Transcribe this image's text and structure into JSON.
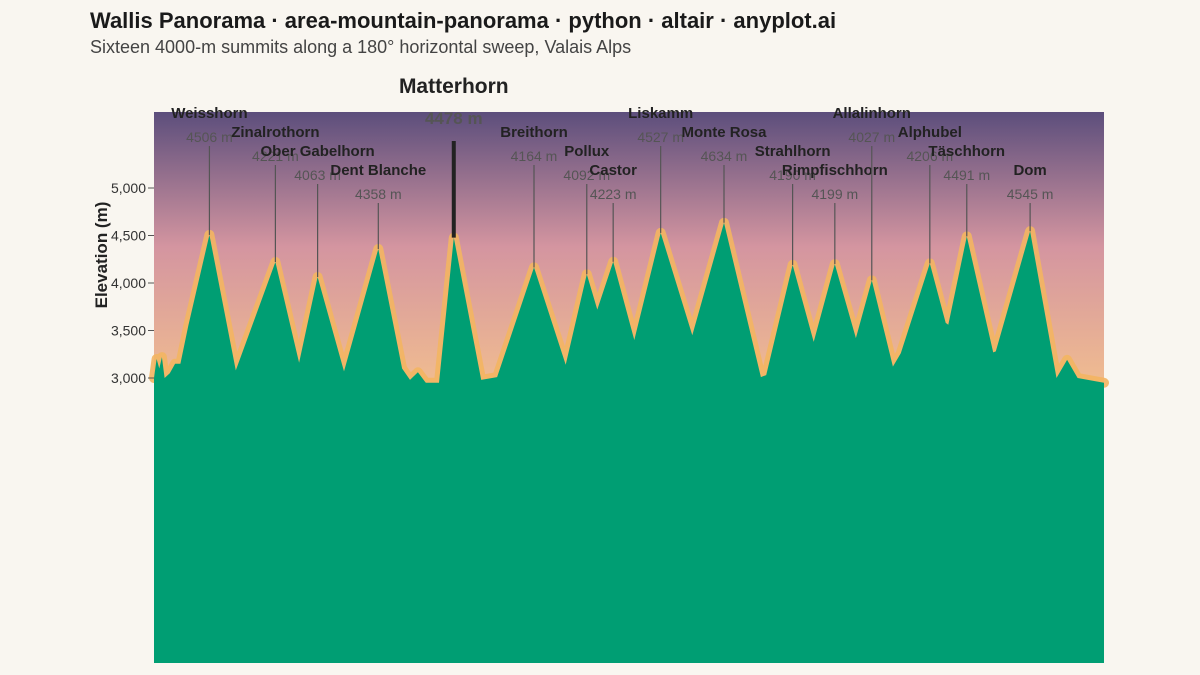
{
  "header": {
    "title": "Wallis Panorama · area-mountain-panorama · python · altair · anyplot.ai",
    "subtitle": "Sixteen 4000-m summits along a 180° horizontal sweep, Valais Alps"
  },
  "chart_data": {
    "type": "area",
    "title": "Wallis Panorama · area-mountain-panorama · python · altair · anyplot.ai",
    "subtitle": "Sixteen 4000-m summits along a 180° horizontal sweep, Valais Alps",
    "xlabel": "",
    "ylabel": "Elevation (m)",
    "ylim": [
      0,
      5800
    ],
    "yticks": [
      3000,
      3500,
      4000,
      4500,
      5000
    ],
    "ytick_labels": [
      "3,000",
      "3,500",
      "4,000",
      "4,500",
      "5,000"
    ],
    "xlim": [
      0,
      180
    ],
    "grid": false,
    "colors": {
      "terrain": "#009e73",
      "ridge_glow": "#f3b562",
      "sky_top": "#5c4e7c",
      "sky_mid": "#d495a0",
      "sky_bottom": "#f6c48d",
      "leader": "#555555",
      "hero_leader": "#222222"
    },
    "peaks": [
      {
        "name": "Weisshorn",
        "elevation_label": "4506 m",
        "x": 10.5,
        "elevation": 4506,
        "label_tier": 0
      },
      {
        "name": "Zinalrothorn",
        "elevation_label": "4221 m",
        "x": 23.0,
        "elevation": 4221,
        "label_tier": 1
      },
      {
        "name": "Ober Gabelhorn",
        "elevation_label": "4063 m",
        "x": 31.0,
        "elevation": 4063,
        "label_tier": 2
      },
      {
        "name": "Dent Blanche",
        "elevation_label": "4358 m",
        "x": 42.5,
        "elevation": 4358,
        "label_tier": 3
      },
      {
        "name": "Matterhorn",
        "elevation_label": "4478 m",
        "x": 56.8,
        "elevation": 4478,
        "label_tier": 0,
        "hero": true
      },
      {
        "name": "Breithorn",
        "elevation_label": "4164 m",
        "x": 72.0,
        "elevation": 4164,
        "label_tier": 1
      },
      {
        "name": "Pollux",
        "elevation_label": "4092 m",
        "x": 82.0,
        "elevation": 4092,
        "label_tier": 2
      },
      {
        "name": "Castor",
        "elevation_label": "4223 m",
        "x": 87.0,
        "elevation": 4223,
        "label_tier": 3
      },
      {
        "name": "Liskamm",
        "elevation_label": "4527 m",
        "x": 96.0,
        "elevation": 4527,
        "label_tier": 0
      },
      {
        "name": "Monte Rosa",
        "elevation_label": "4634 m",
        "x": 108.0,
        "elevation": 4634,
        "label_tier": 1
      },
      {
        "name": "Strahlhorn",
        "elevation_label": "4190 m",
        "x": 121.0,
        "elevation": 4190,
        "label_tier": 2
      },
      {
        "name": "Rimpfischhorn",
        "elevation_label": "4199 m",
        "x": 129.0,
        "elevation": 4199,
        "label_tier": 3
      },
      {
        "name": "Allalinhorn",
        "elevation_label": "4027 m",
        "x": 136.0,
        "elevation": 4027,
        "label_tier": 0
      },
      {
        "name": "Alphubel",
        "elevation_label": "4206 m",
        "x": 147.0,
        "elevation": 4206,
        "label_tier": 1
      },
      {
        "name": "Täschhorn",
        "elevation_label": "4491 m",
        "x": 154.0,
        "elevation": 4491,
        "label_tier": 2
      },
      {
        "name": "Dom",
        "elevation_label": "4545 m",
        "x": 166.0,
        "elevation": 4545,
        "label_tier": 3
      }
    ],
    "ridge_x": [
      0,
      0.5,
      1,
      1.5,
      2,
      3,
      4,
      5,
      6.5,
      10.5,
      15.5,
      23,
      27.5,
      31,
      36,
      42.5,
      47,
      48.5,
      50,
      51.5,
      52.5,
      54,
      56.8,
      62,
      65,
      72,
      78,
      82,
      84,
      87,
      91,
      96,
      102,
      108,
      115,
      116,
      121,
      125,
      129,
      133,
      136,
      140,
      141.5,
      147,
      150,
      150.5,
      154,
      159,
      159.5,
      166,
      171,
      173,
      175,
      180
    ],
    "ridge_y": [
      3000,
      3200,
      3100,
      3220,
      3000,
      3050,
      3150,
      3150,
      3550,
      4506,
      3080,
      4221,
      3160,
      4063,
      3070,
      4358,
      3100,
      2980,
      3060,
      2950,
      2950,
      2950,
      4478,
      2980,
      3010,
      4164,
      3140,
      4092,
      3720,
      4223,
      3400,
      4527,
      3450,
      4634,
      3010,
      3030,
      4190,
      3380,
      4199,
      3420,
      4027,
      3120,
      3260,
      4206,
      3580,
      3560,
      4491,
      3270,
      3280,
      4545,
      3000,
      3190,
      3000,
      2950
    ]
  }
}
